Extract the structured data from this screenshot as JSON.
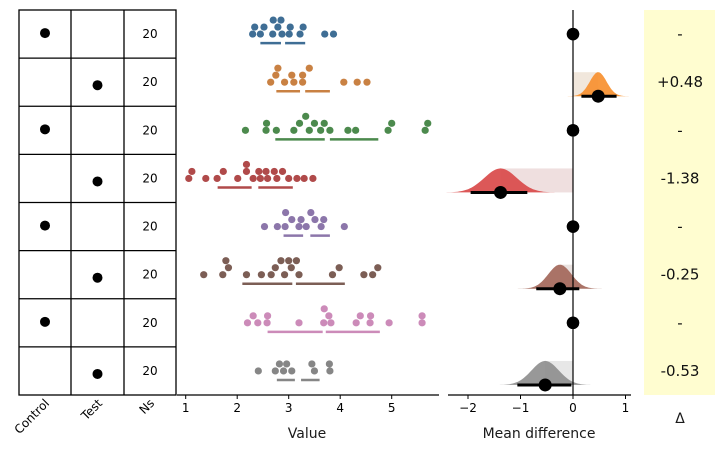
{
  "chart_data": {
    "type": "scatter",
    "title": "",
    "table": {
      "columns": [
        "Control",
        "Test",
        "Ns"
      ],
      "rows": [
        {
          "role": "Control",
          "n": "20"
        },
        {
          "role": "Test",
          "n": "20"
        },
        {
          "role": "Control",
          "n": "20"
        },
        {
          "role": "Test",
          "n": "20"
        },
        {
          "role": "Control",
          "n": "20"
        },
        {
          "role": "Test",
          "n": "20"
        },
        {
          "role": "Control",
          "n": "20"
        },
        {
          "role": "Test",
          "n": "20"
        }
      ]
    },
    "swarm": {
      "xlabel": "Value",
      "xlim": [
        0.8,
        5.8
      ],
      "xticks": [
        "1",
        "2",
        "3",
        "4",
        "5"
      ],
      "xtick_values": [
        1,
        2,
        3,
        4,
        5
      ],
      "groups": [
        {
          "color": "#3f6e95",
          "values": [
            2.3,
            2.45,
            2.69,
            2.79,
            2.87,
            3.01,
            3.22,
            3.7,
            3.87,
            2.34,
            2.52,
            2.7,
            2.85,
            3.03,
            3.28
          ],
          "bars": [
            [
              2.45,
              2.85
            ],
            [
              2.93,
              3.32
            ]
          ]
        },
        {
          "color": "#c98143",
          "values": [
            2.65,
            2.75,
            2.92,
            3.1,
            3.27,
            4.07,
            4.33,
            4.52,
            2.79,
            3.06,
            3.27,
            3.4
          ],
          "bars": [
            [
              2.76,
              3.22
            ],
            [
              3.32,
              3.8
            ]
          ]
        },
        {
          "color": "#4c8a4d",
          "values": [
            2.16,
            2.56,
            2.76,
            3.1,
            3.21,
            3.4,
            3.62,
            3.8,
            4.15,
            4.3,
            4.93,
            5.65,
            2.57,
            3.33,
            3.5,
            3.69,
            5.0,
            5.7
          ],
          "bars": [
            [
              2.74,
              3.7
            ],
            [
              3.8,
              4.74
            ]
          ]
        },
        {
          "color": "#b04a4a",
          "values": [
            1.06,
            1.39,
            1.61,
            2.01,
            2.31,
            2.45,
            2.59,
            2.77,
            3.16,
            3.47,
            1.12,
            1.73,
            2.18,
            2.18,
            2.42,
            2.72,
            3.0,
            2.88,
            2.56,
            3.3
          ],
          "bars": [
            [
              1.62,
              2.28
            ],
            [
              2.41,
              3.08
            ]
          ]
        },
        {
          "color": "#8c76aa",
          "values": [
            2.53,
            2.78,
            2.93,
            3.06,
            3.2,
            3.34,
            3.63,
            4.08,
            2.94,
            3.24,
            3.51,
            3.68,
            3.43
          ],
          "bars": [
            [
              2.9,
              3.28
            ],
            [
              3.42,
              3.8
            ]
          ]
        },
        {
          "color": "#7c5e55",
          "values": [
            1.35,
            1.72,
            1.83,
            2.18,
            2.47,
            2.66,
            2.92,
            3.05,
            3.2,
            3.85,
            3.98,
            4.46,
            4.63,
            1.78,
            2.74,
            2.85,
            3.0,
            3.15,
            4.73
          ],
          "bars": [
            [
              2.1,
              3.07
            ],
            [
              3.14,
              4.09
            ]
          ]
        },
        {
          "color": "#cc8bb9",
          "values": [
            2.2,
            2.58,
            3.2,
            3.68,
            3.78,
            4.31,
            4.58,
            4.95,
            5.59,
            2.31,
            2.4,
            2.59,
            3.69,
            3.82,
            4.39,
            4.59,
            5.59
          ],
          "bars": [
            [
              2.59,
              3.66
            ],
            [
              3.72,
              4.77
            ]
          ]
        },
        {
          "color": "#868686",
          "values": [
            2.41,
            2.74,
            2.9,
            3.06,
            3.5,
            3.8,
            2.82,
            2.96,
            3.45,
            3.79
          ],
          "bars": [
            [
              2.77,
              3.12
            ],
            [
              3.24,
              3.6
            ]
          ]
        }
      ]
    },
    "delta": {
      "xlabel": "Mean difference",
      "xlim": [
        -2.35,
        1.1
      ],
      "xticks": [
        "−2",
        "−1",
        "0",
        "1"
      ],
      "xtick_values": [
        -2,
        -1,
        0,
        1
      ],
      "rows": [
        {
          "kind": "ref",
          "value": 0
        },
        {
          "kind": "diff",
          "value": 0.48,
          "ci": [
            0.16,
            0.83
          ],
          "sd": 0.16,
          "color": "#f7902f",
          "rect_color": "#efe3d6"
        },
        {
          "kind": "ref",
          "value": 0
        },
        {
          "kind": "diff",
          "value": -1.38,
          "ci": [
            -1.95,
            -0.87
          ],
          "sd": 0.31,
          "color": "#d94a4a",
          "rect_color": "#ecd9d9"
        },
        {
          "kind": "ref",
          "value": 0
        },
        {
          "kind": "diff",
          "value": -0.25,
          "ci": [
            -0.7,
            0.12
          ],
          "sd": 0.22,
          "color": "#a3675a",
          "rect_color": "#e6dddb"
        },
        {
          "kind": "ref",
          "value": 0
        },
        {
          "kind": "diff",
          "value": -0.53,
          "ci": [
            -1.06,
            -0.03
          ],
          "sd": 0.26,
          "color": "#8f8f8f",
          "rect_color": "#e3e3e3"
        }
      ]
    },
    "delta_panel": {
      "label": "Δ",
      "background": "#fffdd0",
      "texts": [
        "-",
        "+0.48",
        "-",
        "-1.38",
        "-",
        "-0.25",
        "-",
        "-0.53"
      ]
    }
  }
}
